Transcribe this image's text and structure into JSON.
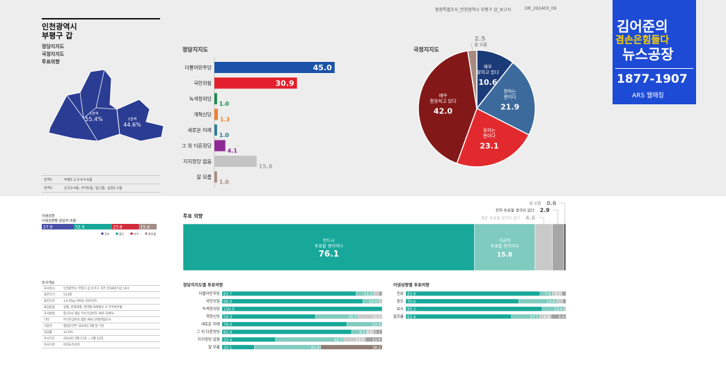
{
  "header": {
    "report_title": "충청특별조사_인천광역시 부평구 갑_보고서",
    "report_code": "DR_202403_09"
  },
  "region": {
    "title_line1": "인천광역시",
    "title_line2": "부평구 갑",
    "menu": [
      "정당지지도",
      "국정지지도",
      "투표의향"
    ],
    "map_left_label": "1권역",
    "map_left_value": "55.4%",
    "map_right_label": "2권역",
    "map_right_value": "44.6%",
    "zones": [
      {
        "name": "권역1",
        "desc": "부평1·2·3·4·5·6동"
      },
      {
        "name": "권역2",
        "desc": "산곡3·4동, 부개1동, 일신동, 십정1·2동"
      }
    ]
  },
  "logo": {
    "line1": "김어준의",
    "line2": "겸손은힘들다",
    "line3": "뉴스공장",
    "dates": "1877-1907",
    "sub": "ARS 웹매칭"
  },
  "colors": {
    "dem": "#1a52a8",
    "ppp": "#e21f2c",
    "green": "#1a8a4e",
    "reform": "#f08030",
    "newf": "#2e7b8c",
    "other": "#8e2a94",
    "none": "#c4c4c4",
    "dk": "#a88b80",
    "teal": "#17a89a",
    "teal_light": "#7fcbbf"
  },
  "chart_data": [
    {
      "type": "bar",
      "title": "정당지지도",
      "categories": [
        "더불어민주당",
        "국민의힘",
        "녹색정의당",
        "개혁신당",
        "새로운 미래",
        "그 외 다른정당",
        "지지정당 없음",
        "잘 모름"
      ],
      "values": [
        45.0,
        30.9,
        1.0,
        1.3,
        1.0,
        4.1,
        15.8,
        1.0
      ],
      "xlim": [
        0,
        50
      ]
    },
    {
      "type": "pie",
      "title": "국정지지도",
      "categories": [
        "매우 잘하고 있다",
        "잘하는 편이다",
        "못하는 편이다",
        "매우 잘못하고 있다",
        "잘 모름"
      ],
      "values": [
        10.6,
        21.9,
        23.1,
        42.0,
        2.5
      ],
      "label_lines": [
        [
          "매우",
          "잘하고 있다"
        ],
        [
          "잘하는",
          "편이다"
        ],
        [
          "못하는",
          "편이다"
        ],
        [
          "매우",
          "잘못하고 있다"
        ],
        [
          "잘 모름"
        ]
      ]
    },
    {
      "type": "bar",
      "title": "이념성향",
      "subtitle": "이념성향별 응답자 비율",
      "categories": [
        "진보",
        "중도",
        "보수",
        "잘모름"
      ],
      "values": [
        27.9,
        32.9,
        23.8,
        15.4
      ]
    },
    {
      "type": "bar",
      "title": "투표 의향",
      "categories": [
        "반드시 투표할 생각이다",
        "가급적 투표할 생각이다",
        "별로 투표할 생각이 없다",
        "전혀 투표할 생각이 없다",
        "잘 모름"
      ],
      "values": [
        76.1,
        15.8,
        4.6,
        2.9,
        0.6
      ],
      "label_lines": [
        [
          "반드시",
          "투표할 생각이다"
        ],
        [
          "가급적",
          "투표할 생각이다"
        ]
      ]
    },
    {
      "type": "bar",
      "title": "정당지지도별 투표의향",
      "categories": [
        "더불어민주당",
        "국민의힘",
        "녹색정의당",
        "개혁신당",
        "새로운 미래",
        "그 외 다른정당",
        "지지정당 없음",
        "잘 모름"
      ],
      "series": [
        {
          "name": "반드시",
          "values": [
            83.7,
            88.0,
            100.0,
            58.3,
            78.0,
            80.9,
            33.4,
            20.1
          ]
        },
        {
          "name": "가급적",
          "values": [
            11.1,
            10.0,
            0,
            26.7,
            22.0,
            9.5,
            42.7,
            41.6
          ]
        },
        {
          "name": "별로",
          "values": [
            3.2,
            1.2,
            0,
            15.0,
            0,
            4.5,
            13.3,
            0
          ]
        },
        {
          "name": "전혀",
          "values": [
            1.6,
            0.6,
            0,
            0,
            0,
            5.1,
            10.6,
            0
          ]
        },
        {
          "name": "잘 모름",
          "values": [
            0.4,
            0.2,
            0,
            0,
            0,
            0,
            0,
            38.3
          ]
        }
      ]
    },
    {
      "type": "bar",
      "title": "이념성향별 투표의향",
      "categories": [
        "진보",
        "중도",
        "보수",
        "잘모름"
      ],
      "series": [
        {
          "name": "반드시",
          "values": [
            83.8,
            70.6,
            85.2,
            63.4
          ]
        },
        {
          "name": "가급적",
          "values": [
            7.6,
            23.6,
            13.6,
            17.1
          ]
        },
        {
          "name": "별로",
          "values": [
            6.3,
            3.8,
            1.2,
            6.8
          ]
        },
        {
          "name": "전혀",
          "values": [
            2.3,
            2.0,
            0,
            8.9
          ]
        }
      ]
    }
  ],
  "survey": {
    "title": "조사개요",
    "rows": [
      [
        "조사일시",
        "인천광역시 부평구 갑 선거구 거주 만18세 이상 남녀"
      ],
      [
        "표본크기",
        "513명"
      ],
      [
        "표본오차",
        "±4.3%p (95% 신뢰수준)"
      ],
      [
        "표집방법",
        "성별, 연령대별, 권역별 비례할당 후 무작위추출"
      ],
      [
        "조사방법",
        "통신3사 제공 무선가상번호 ARS 100%"
      ],
      [
        "기타",
        "무선가상번호 활용 ARS 전화면접조사"
      ],
      [
        "가중치",
        "행정안전부 2024년 2월 말 기준"
      ],
      [
        "응답률",
        "12.6%"
      ],
      [
        "조사기간",
        "2024년 3월 11일 ~ 3월 12일"
      ],
      [
        "조사기관",
        "여의도리서치"
      ]
    ]
  }
}
